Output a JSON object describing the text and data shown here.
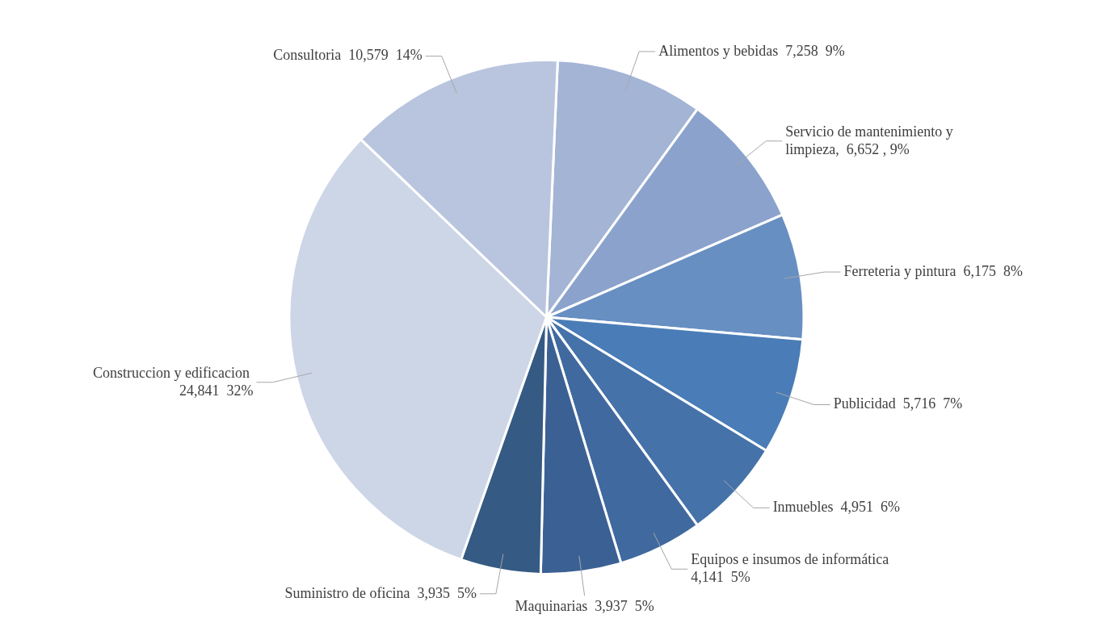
{
  "chart_data": {
    "type": "pie",
    "categories": [
      "Alimentos y bebidas",
      "Servicio de mantenimiento y limpieza",
      "Ferreteria y pintura",
      "Publicidad",
      "Inmuebles",
      "Equipos e insumos de informática",
      "Maquinarias",
      "Suministro de oficina",
      "Construccion y edificacion",
      "Consultoria"
    ],
    "values": [
      7258,
      6652,
      6175,
      5716,
      4951,
      4141,
      3937,
      3935,
      24841,
      10579
    ],
    "value_labels": [
      "7,258  9%",
      ",  6,652 , 9%",
      "6,175  8%",
      "5,716  7%",
      "4,951  6%",
      "4,141  5%",
      "3,937  5%",
      "3,935  5%",
      "24,841  32%",
      "10,579  14%"
    ],
    "colors": [
      "#a3b4d5",
      "#8ba3cc",
      "#678fc2",
      "#4a7db7",
      "#4572a9",
      "#40699f",
      "#3b6194",
      "#355a83",
      "#cdd6e7",
      "#b9c5de"
    ],
    "legend": false
  }
}
